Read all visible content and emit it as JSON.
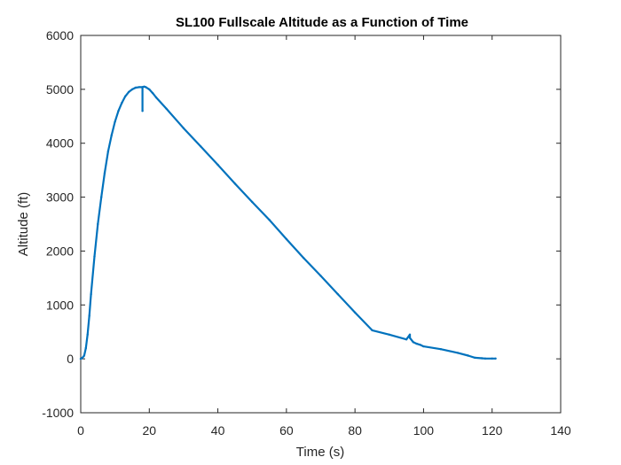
{
  "chart_data": {
    "type": "line",
    "title": "SL100 Fullscale Altitude as a Function of Time",
    "xlabel": "Time (s)",
    "ylabel": "Altitude (ft)",
    "xlim": [
      0,
      140
    ],
    "ylim": [
      -1000,
      6000
    ],
    "xticks": [
      0,
      20,
      40,
      60,
      80,
      100,
      120,
      140
    ],
    "yticks": [
      -1000,
      0,
      1000,
      2000,
      3000,
      4000,
      5000,
      6000
    ],
    "grid": false,
    "legend": "none",
    "series": [
      {
        "color": "#0072BD",
        "x": [
          0,
          0.5,
          1,
          1.5,
          2,
          2.5,
          3,
          4,
          5,
          6,
          7,
          8,
          9,
          10,
          11,
          12,
          13,
          14,
          15,
          16,
          17,
          18,
          18,
          18,
          18.5,
          19,
          20,
          21,
          22,
          25,
          30,
          35,
          40,
          45,
          50,
          55,
          60,
          65,
          70,
          75,
          80,
          85,
          90,
          95,
          96,
          96,
          96,
          97,
          98,
          99,
          100,
          105,
          110,
          113,
          115,
          117,
          118,
          120,
          121
        ],
        "values": [
          0,
          20,
          60,
          200,
          450,
          800,
          1200,
          1900,
          2500,
          3000,
          3450,
          3850,
          4150,
          4400,
          4600,
          4750,
          4870,
          4950,
          5000,
          5030,
          5040,
          5040,
          4600,
          5040,
          5050,
          5040,
          5000,
          4930,
          4850,
          4640,
          4280,
          3940,
          3600,
          3250,
          2910,
          2580,
          2220,
          1870,
          1540,
          1200,
          860,
          530,
          450,
          360,
          450,
          420,
          390,
          310,
          280,
          260,
          230,
          180,
          110,
          60,
          20,
          10,
          5,
          5,
          5
        ]
      }
    ]
  }
}
